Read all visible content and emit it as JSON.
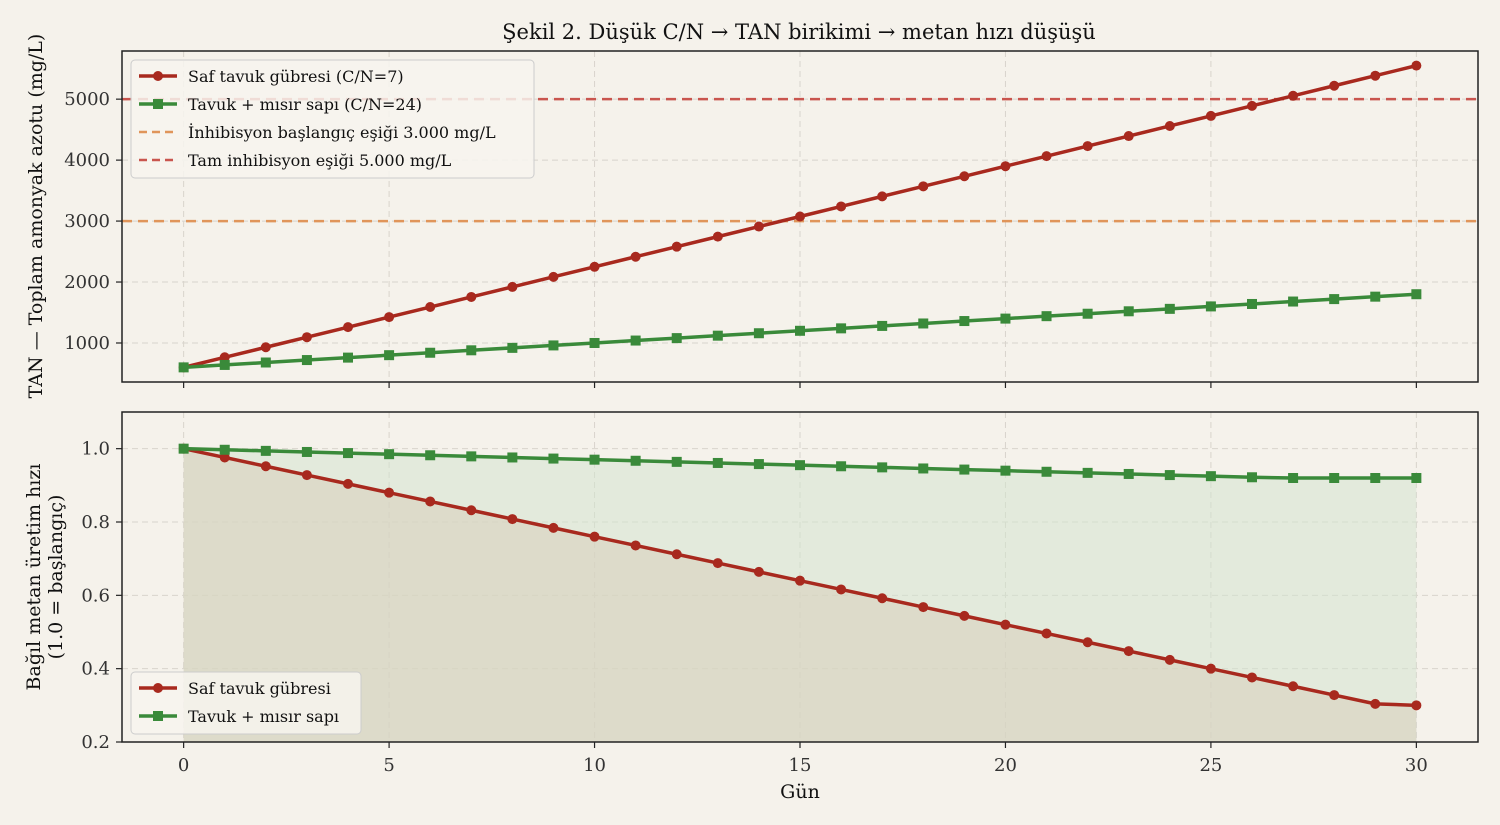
{
  "chart_data": {
    "type": "line",
    "title": "Şekil 2. Düşük C/N → TAN birikimi → metan hızı düşüşü",
    "xlabel": "Gün",
    "x": [
      0,
      1,
      2,
      3,
      4,
      5,
      6,
      7,
      8,
      9,
      10,
      11,
      12,
      13,
      14,
      15,
      16,
      17,
      18,
      19,
      20,
      21,
      22,
      23,
      24,
      25,
      26,
      27,
      28,
      29,
      30
    ],
    "x_ticks": [
      0,
      5,
      10,
      15,
      20,
      25,
      30
    ],
    "xlim": [
      -1.5,
      31.5
    ],
    "grid": true,
    "panels": [
      {
        "ylabel": "TAN — Toplam amonyak azotu (mg/L)",
        "ylim": [
          360,
          5790
        ],
        "y_ticks": [
          1000,
          2000,
          3000,
          4000,
          5000
        ],
        "legend_position": "top-left",
        "series": [
          {
            "name": "Saf tavuk gübresi (C/N=7)",
            "color": "#a8291e",
            "marker": "circle",
            "values": [
              600,
              765,
              930,
              1095,
              1260,
              1425,
              1590,
              1755,
              1920,
              2085,
              2250,
              2415,
              2580,
              2745,
              2910,
              3075,
              3240,
              3405,
              3570,
              3735,
              3900,
              4065,
              4230,
              4395,
              4560,
              4725,
              4890,
              5055,
              5220,
              5385,
              5550
            ]
          },
          {
            "name": "Tavuk + mısır sapı (C/N=24)",
            "color": "#3a8a3a",
            "marker": "square",
            "values": [
              600,
              640,
              680,
              720,
              760,
              800,
              840,
              880,
              920,
              960,
              1000,
              1040,
              1080,
              1120,
              1160,
              1200,
              1240,
              1280,
              1320,
              1360,
              1400,
              1440,
              1480,
              1520,
              1560,
              1600,
              1640,
              1680,
              1720,
              1760,
              1800
            ]
          }
        ],
        "reference_lines": [
          {
            "name": "İnhibisyon başlangıç eşiği 3.000 mg/L",
            "y": 3000,
            "color": "#e0955a"
          },
          {
            "name": "Tam inhibisyon eşiği 5.000 mg/L",
            "y": 5000,
            "color": "#c9554e"
          }
        ]
      },
      {
        "ylabel": "Bağıl metan üretim hızı",
        "ylabel2": "(1.0 = başlangıç)",
        "ylim": [
          0.2,
          1.1
        ],
        "y_ticks": [
          0.2,
          0.4,
          0.6,
          0.8,
          1.0
        ],
        "legend_position": "bottom-left",
        "fill_to_baseline": true,
        "series": [
          {
            "name": "Saf tavuk gübresi",
            "color": "#a8291e",
            "marker": "circle",
            "fill_color": "#d9cdbc",
            "values": [
              1.0,
              0.976,
              0.952,
              0.928,
              0.904,
              0.88,
              0.856,
              0.832,
              0.808,
              0.784,
              0.76,
              0.736,
              0.712,
              0.688,
              0.664,
              0.64,
              0.616,
              0.592,
              0.568,
              0.544,
              0.52,
              0.496,
              0.472,
              0.448,
              0.424,
              0.4,
              0.376,
              0.352,
              0.328,
              0.304,
              0.3
            ]
          },
          {
            "name": "Tavuk + mısır sapı",
            "color": "#3a8a3a",
            "marker": "square",
            "fill_color": "#d3e3cf",
            "values": [
              1.0,
              0.997,
              0.994,
              0.991,
              0.988,
              0.985,
              0.982,
              0.979,
              0.976,
              0.973,
              0.97,
              0.967,
              0.964,
              0.961,
              0.958,
              0.955,
              0.952,
              0.949,
              0.946,
              0.943,
              0.94,
              0.937,
              0.934,
              0.931,
              0.928,
              0.925,
              0.922,
              0.92,
              0.92,
              0.92,
              0.92
            ]
          }
        ]
      }
    ]
  }
}
